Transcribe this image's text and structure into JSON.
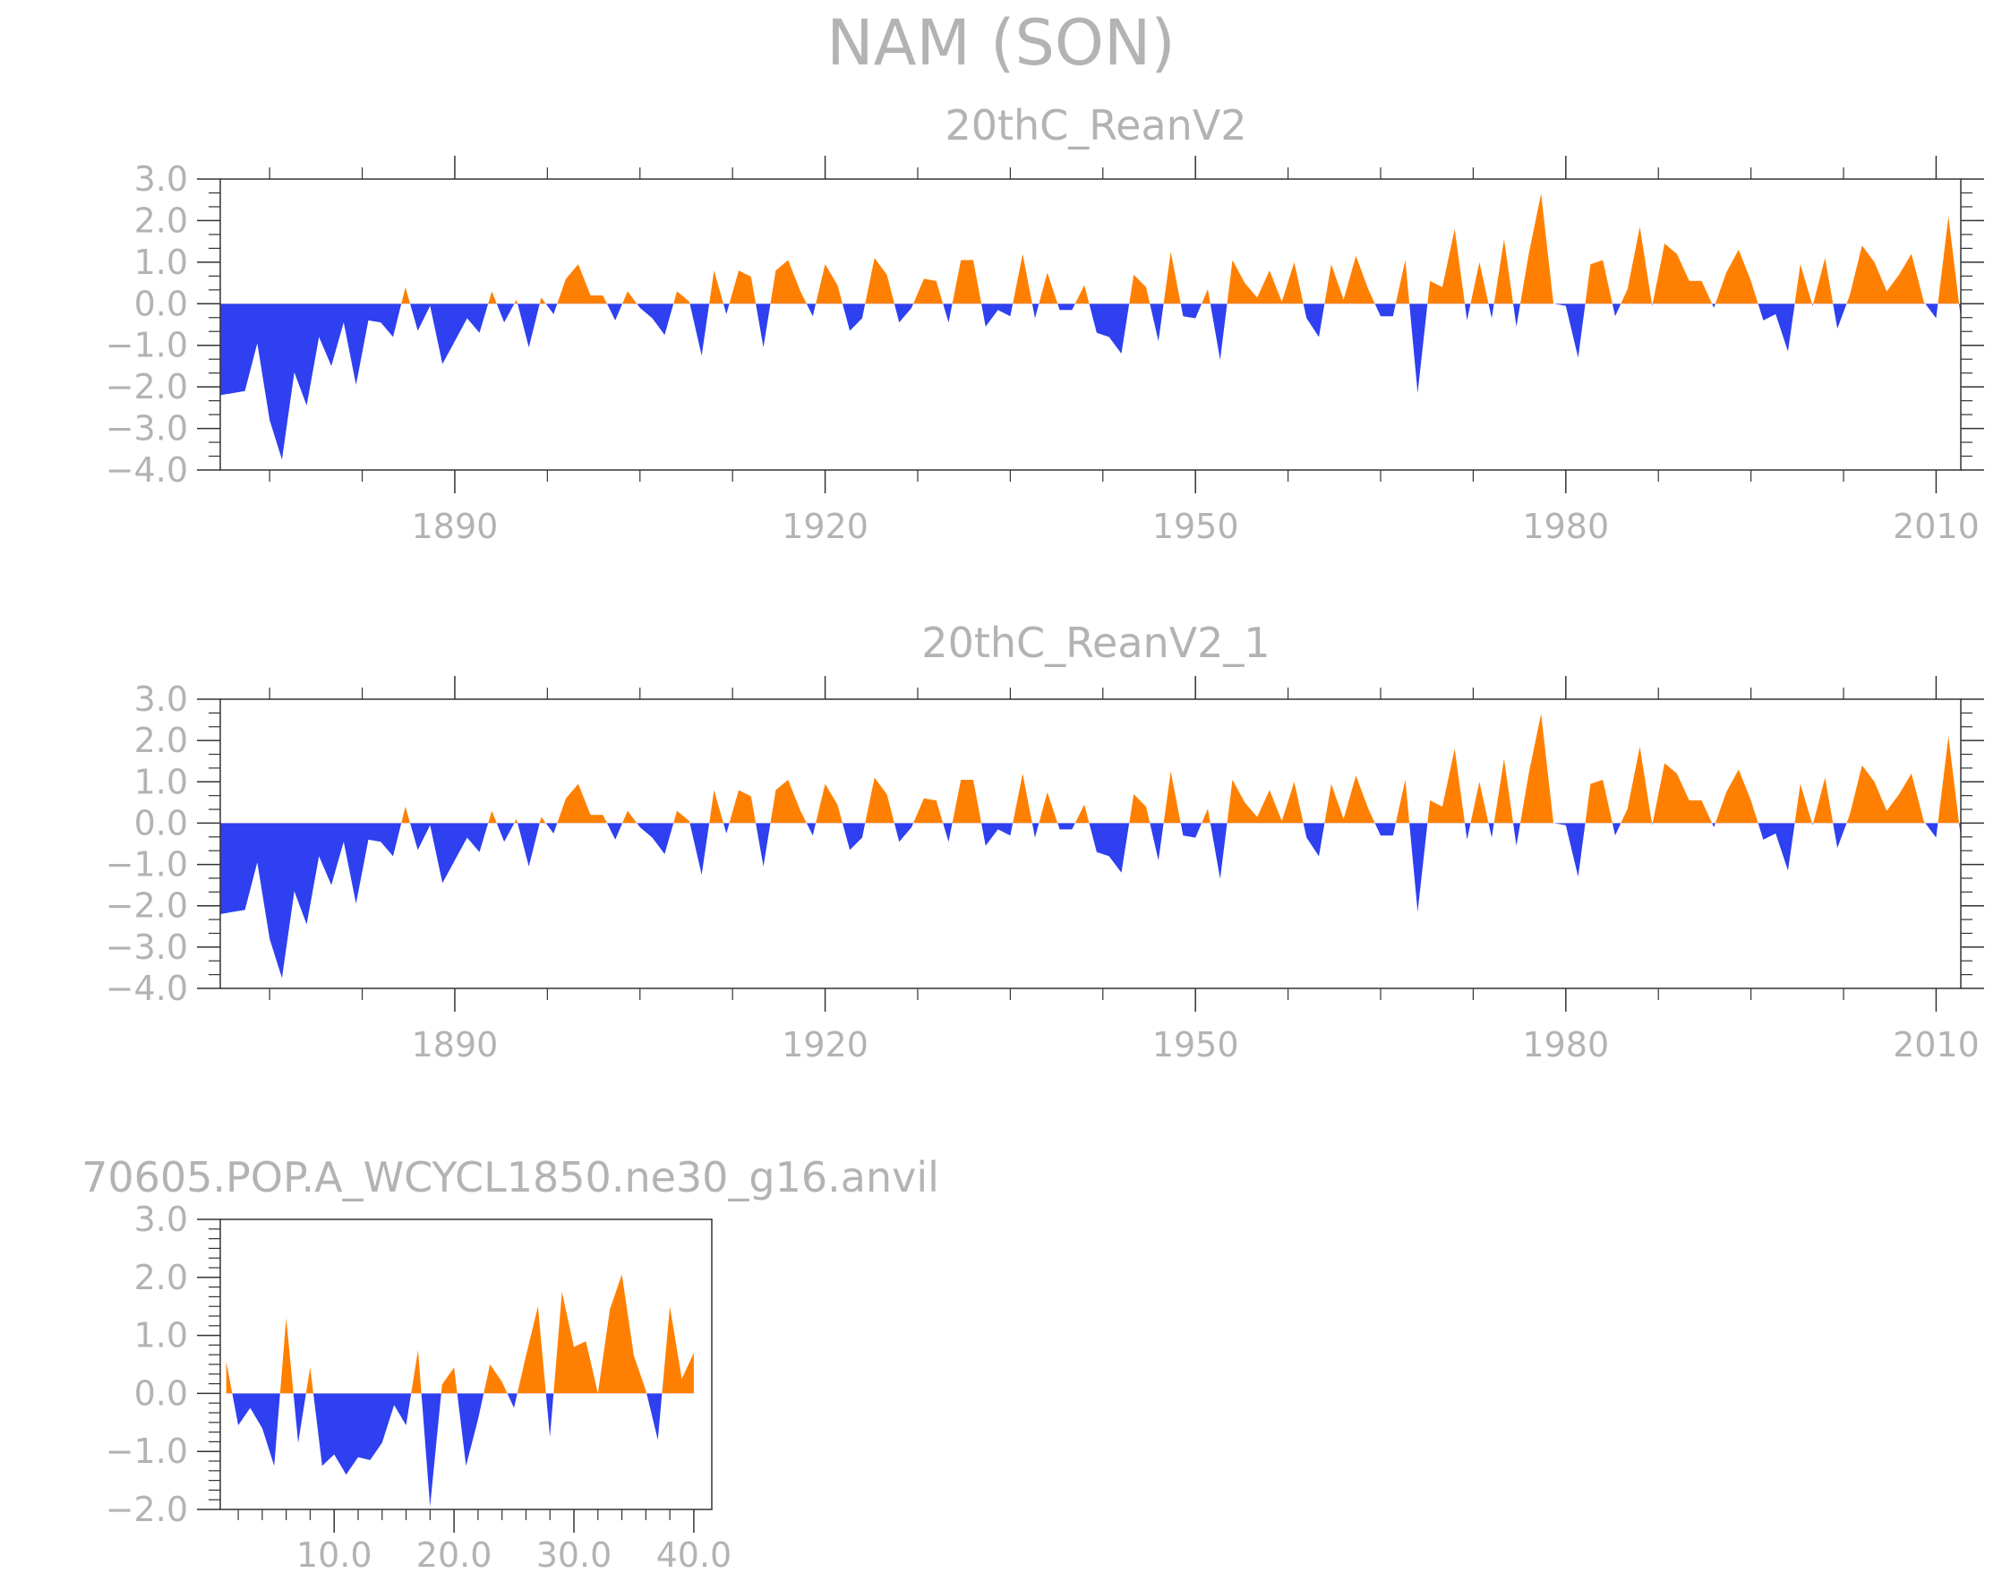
{
  "colors": {
    "positive": "#ff8000",
    "negative": "#2e40f0",
    "text": "#b3b3b3",
    "axis": "#333333"
  },
  "title": "NAM (SON)",
  "chart_data": [
    {
      "type": "area",
      "title": "20thC_ReanV2",
      "xlim": [
        1871,
        2012
      ],
      "ylim": [
        -4.0,
        3.0
      ],
      "xticks": [
        1890,
        1920,
        1950,
        1980,
        2010
      ],
      "xtick_labels": [
        "1890",
        "1920",
        "1950",
        "1980",
        "2010"
      ],
      "yticks": [
        3.0,
        2.0,
        1.0,
        0.0,
        -1.0,
        -2.0,
        -3.0,
        -4.0
      ],
      "ytick_labels": [
        "3.0",
        "2.0",
        "1.0",
        "0.0",
        "−1.0",
        "−2.0",
        "−3.0",
        "−4.0"
      ],
      "x_start": 1871,
      "values": [
        -2.2,
        -2.15,
        -2.1,
        -0.95,
        -2.8,
        -3.75,
        -1.65,
        -2.45,
        -0.8,
        -1.5,
        -0.45,
        -1.95,
        -0.4,
        -0.45,
        -0.8,
        0.4,
        -0.65,
        -0.05,
        -1.45,
        -0.9,
        -0.35,
        -0.7,
        0.3,
        -0.45,
        0.1,
        -1.05,
        0.15,
        -0.25,
        0.6,
        0.95,
        0.2,
        0.2,
        -0.4,
        0.3,
        -0.1,
        -0.35,
        -0.75,
        0.3,
        0.05,
        -1.25,
        0.8,
        -0.25,
        0.8,
        0.65,
        -1.05,
        0.8,
        1.05,
        0.3,
        -0.3,
        0.95,
        0.45,
        -0.65,
        -0.35,
        1.1,
        0.7,
        -0.45,
        -0.1,
        0.6,
        0.55,
        -0.45,
        1.05,
        1.05,
        -0.55,
        -0.15,
        -0.3,
        1.2,
        -0.35,
        0.75,
        -0.15,
        -0.15,
        0.45,
        -0.7,
        -0.8,
        -1.2,
        0.7,
        0.4,
        -0.9,
        1.25,
        -0.3,
        -0.35,
        0.35,
        -1.35,
        1.05,
        0.5,
        0.15,
        0.8,
        0.05,
        1.0,
        -0.35,
        -0.8,
        0.95,
        0.1,
        1.15,
        0.35,
        -0.3,
        -0.3,
        1.05,
        -2.15,
        0.55,
        0.4,
        1.8,
        -0.4,
        1.0,
        -0.35,
        1.55,
        -0.55,
        1.2,
        2.65,
        0.0,
        -0.05,
        -1.3,
        0.95,
        1.05,
        -0.3,
        0.35,
        1.85,
        -0.05,
        1.45,
        1.2,
        0.55,
        0.55,
        -0.1,
        0.75,
        1.3,
        0.55,
        -0.4,
        -0.25,
        -1.15,
        0.95,
        -0.05,
        1.1,
        -0.6,
        0.2,
        1.4,
        1.0,
        0.3,
        0.7,
        1.2,
        0.05,
        -0.35,
        2.1,
        -0.35
      ]
    },
    {
      "type": "area",
      "title": "20thC_ReanV2_1",
      "xlim": [
        1871,
        2012
      ],
      "ylim": [
        -4.0,
        3.0
      ],
      "xticks": [
        1890,
        1920,
        1950,
        1980,
        2010
      ],
      "xtick_labels": [
        "1890",
        "1920",
        "1950",
        "1980",
        "2010"
      ],
      "yticks": [
        3.0,
        2.0,
        1.0,
        0.0,
        -1.0,
        -2.0,
        -3.0,
        -4.0
      ],
      "ytick_labels": [
        "3.0",
        "2.0",
        "1.0",
        "0.0",
        "−1.0",
        "−2.0",
        "−3.0",
        "−4.0"
      ],
      "x_start": 1871,
      "values": [
        -2.2,
        -2.15,
        -2.1,
        -0.95,
        -2.8,
        -3.75,
        -1.65,
        -2.45,
        -0.8,
        -1.5,
        -0.45,
        -1.95,
        -0.4,
        -0.45,
        -0.8,
        0.4,
        -0.65,
        -0.05,
        -1.45,
        -0.9,
        -0.35,
        -0.7,
        0.3,
        -0.45,
        0.1,
        -1.05,
        0.15,
        -0.25,
        0.6,
        0.95,
        0.2,
        0.2,
        -0.4,
        0.3,
        -0.1,
        -0.35,
        -0.75,
        0.3,
        0.05,
        -1.25,
        0.8,
        -0.25,
        0.8,
        0.65,
        -1.05,
        0.8,
        1.05,
        0.3,
        -0.3,
        0.95,
        0.45,
        -0.65,
        -0.35,
        1.1,
        0.7,
        -0.45,
        -0.1,
        0.6,
        0.55,
        -0.45,
        1.05,
        1.05,
        -0.55,
        -0.15,
        -0.3,
        1.2,
        -0.35,
        0.75,
        -0.15,
        -0.15,
        0.45,
        -0.7,
        -0.8,
        -1.2,
        0.7,
        0.4,
        -0.9,
        1.25,
        -0.3,
        -0.35,
        0.35,
        -1.35,
        1.05,
        0.5,
        0.15,
        0.8,
        0.05,
        1.0,
        -0.35,
        -0.8,
        0.95,
        0.1,
        1.15,
        0.35,
        -0.3,
        -0.3,
        1.05,
        -2.15,
        0.55,
        0.4,
        1.8,
        -0.4,
        1.0,
        -0.35,
        1.55,
        -0.55,
        1.2,
        2.65,
        0.0,
        -0.05,
        -1.3,
        0.95,
        1.05,
        -0.3,
        0.35,
        1.85,
        -0.05,
        1.45,
        1.2,
        0.55,
        0.55,
        -0.1,
        0.75,
        1.3,
        0.55,
        -0.4,
        -0.25,
        -1.15,
        0.95,
        -0.05,
        1.1,
        -0.6,
        0.2,
        1.4,
        1.0,
        0.3,
        0.7,
        1.2,
        0.05,
        -0.35,
        2.1,
        -0.35
      ]
    },
    {
      "type": "area",
      "title": "70605.POP.A_WCYCL1850.ne30_g16.anvil",
      "xlim": [
        0.5,
        41.5
      ],
      "ylim": [
        -2.0,
        3.0
      ],
      "xticks": [
        10,
        20,
        30,
        40
      ],
      "xtick_labels": [
        "10.0",
        "20.0",
        "30.0",
        "40.0"
      ],
      "yticks": [
        3.0,
        2.0,
        1.0,
        0.0,
        -1.0,
        -2.0
      ],
      "ytick_labels": [
        "3.0",
        "2.0",
        "1.0",
        "0.0",
        "−1.0",
        "−2.0"
      ],
      "x_start": 1,
      "values": [
        0.55,
        -0.55,
        -0.25,
        -0.6,
        -1.25,
        1.3,
        -0.85,
        0.45,
        -1.25,
        -1.05,
        -1.4,
        -1.1,
        -1.15,
        -0.85,
        -0.2,
        -0.55,
        0.75,
        -1.95,
        0.15,
        0.45,
        -1.25,
        -0.45,
        0.5,
        0.2,
        -0.25,
        0.65,
        1.5,
        -0.75,
        1.75,
        0.8,
        0.9,
        0.0,
        1.45,
        2.05,
        0.65,
        0.05,
        -0.8,
        1.5,
        0.25,
        0.7
      ]
    }
  ]
}
